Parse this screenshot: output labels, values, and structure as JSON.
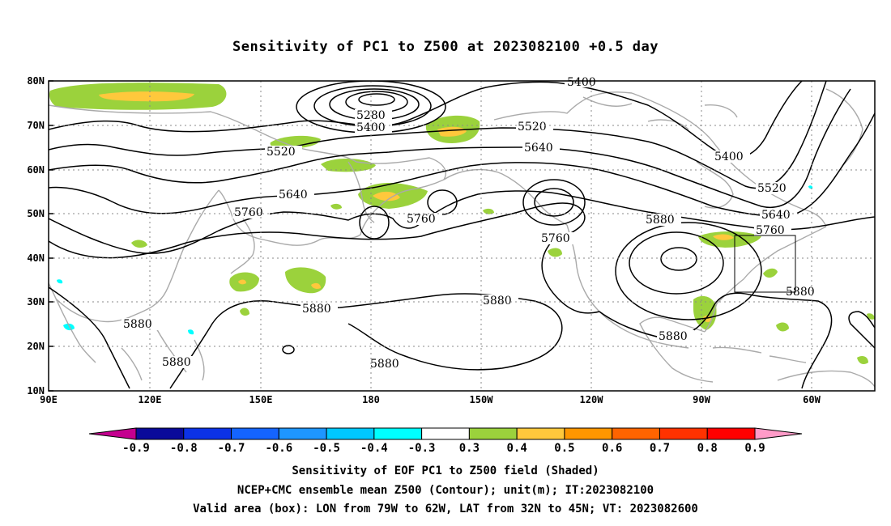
{
  "title": "Sensitivity of PC1 to Z500 at 2023082100 +0.5 day",
  "lat_ticks": [
    "80N",
    "70N",
    "60N",
    "50N",
    "40N",
    "30N",
    "20N",
    "10N"
  ],
  "lon_ticks": [
    "90E",
    "120E",
    "150E",
    "180",
    "150W",
    "120W",
    "90W",
    "60W"
  ],
  "contour_labels": {
    "c5400_top": "5400",
    "c5280": "5280",
    "c5400_mid": "5400",
    "c5520_left": "5520",
    "c5520_mid": "5520",
    "c5640_mid": "5640",
    "c5640_left": "5640",
    "c5760_left": "5760",
    "c5760_mid": "5760",
    "c5760_pac": "5760",
    "c5880_pac": "5880",
    "c5880_a": "5880",
    "c5880_b": "5880",
    "c5880_c": "5880",
    "c5880_d": "5880",
    "c5880_e": "5880",
    "c5880_f": "5880",
    "c5400_right": "5400",
    "c5520_right": "5520",
    "c5640_right": "5640",
    "c5760_right": "5760",
    "c5880_right": "5880"
  },
  "colorbar": {
    "colors": [
      "#c4008f",
      "#0a0a9a",
      "#0c32e6",
      "#1464ff",
      "#1e96ff",
      "#00c8ff",
      "#00ffff",
      "#ffffff",
      "#9bd23c",
      "#ffc83c",
      "#ff9600",
      "#ff6400",
      "#ff3200",
      "#ff0000",
      "#ff9bc8"
    ],
    "labels": [
      "-0.9",
      "-0.8",
      "-0.7",
      "-0.6",
      "-0.5",
      "-0.4",
      "-0.3",
      "0.3",
      "0.4",
      "0.5",
      "0.6",
      "0.7",
      "0.8",
      "0.9"
    ]
  },
  "captions": {
    "line1": "Sensitivity of EOF PC1 to Z500 field (Shaded)",
    "line2": "NCEP+CMC ensemble mean Z500 (Contour); unit(m); IT:2023082100",
    "line3": "Valid area (box): LON from 79W to 62W, LAT from 32N to 45N; VT: 2023082600"
  },
  "colors": {
    "positive": "#9bd23c",
    "positive_mid": "#ffc83c",
    "negative": "#00ffff",
    "coast": "#aaaaaa"
  }
}
